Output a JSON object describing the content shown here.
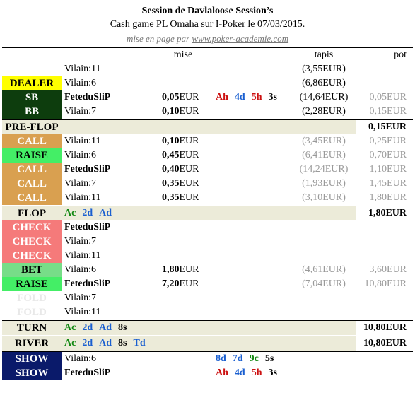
{
  "header": {
    "title": "Session de Davlaloose Session’s",
    "subtitle": "Cash game PL Omaha sur I-Poker le 07/03/2015.",
    "credit_prefix": "mise en page par ",
    "credit_url": "www.poker-academie.com"
  },
  "columns": {
    "mise": "mise",
    "tapis": "tapis",
    "pot": "pot"
  },
  "colors": {
    "dealer": "#ffff00",
    "blinds": "#0d3d0d",
    "call": "#d9a050",
    "raise": "#44ee66",
    "check": "#f57a7a",
    "bet": "#77dd88",
    "fold": "#e8e8e8",
    "show": "#0a1a6a",
    "street_bg": "#ecebd9"
  },
  "preflop_setup": [
    {
      "badge": "",
      "player": "Vilain:11",
      "mise": "",
      "cards": [],
      "tapis": "(3,55EUR)",
      "pot": ""
    },
    {
      "badge": "DEALER",
      "player": "Vilain:6",
      "mise": "",
      "cards": [],
      "tapis": "(6,86EUR)",
      "pot": ""
    },
    {
      "badge": "SB",
      "player": "FeteduSliP",
      "mise": "0,05",
      "cards": [
        {
          "v": "Ah",
          "c": "red"
        },
        {
          "v": "4d",
          "c": "blue"
        },
        {
          "v": "5h",
          "c": "red"
        },
        {
          "v": "3s",
          "c": "black"
        }
      ],
      "tapis": "(14,64EUR)",
      "pot": "0,05EUR"
    },
    {
      "badge": "BB",
      "player": "Vilain:7",
      "mise": "0,10",
      "cards": [],
      "tapis": "(2,28EUR)",
      "pot": "0,15EUR"
    }
  ],
  "preflop": {
    "label": "PRE-FLOP",
    "cards": [],
    "pot": "0,15EUR",
    "actions": [
      {
        "badge": "CALL",
        "player": "Vilain:11",
        "mise": "0,10",
        "tapis": "(3,45EUR)",
        "pot": "0,25EUR"
      },
      {
        "badge": "RAISE",
        "player": "Vilain:6",
        "mise": "0,45",
        "tapis": "(6,41EUR)",
        "pot": "0,70EUR"
      },
      {
        "badge": "CALL",
        "player": "FeteduSliP",
        "mise": "0,40",
        "tapis": "(14,24EUR)",
        "pot": "1,10EUR"
      },
      {
        "badge": "CALL",
        "player": "Vilain:7",
        "mise": "0,35",
        "tapis": "(1,93EUR)",
        "pot": "1,45EUR"
      },
      {
        "badge": "CALL",
        "player": "Vilain:11",
        "mise": "0,35",
        "tapis": "(3,10EUR)",
        "pot": "1,80EUR"
      }
    ]
  },
  "flop": {
    "label": "FLOP",
    "pot": "1,80EUR",
    "cards": [
      {
        "v": "Ac",
        "c": "green"
      },
      {
        "v": "2d",
        "c": "blue"
      },
      {
        "v": "Ad",
        "c": "blue"
      }
    ],
    "actions": [
      {
        "badge": "CHECK",
        "player": "FeteduSliP",
        "mise": "",
        "tapis": "",
        "pot": ""
      },
      {
        "badge": "CHECK",
        "player": "Vilain:7",
        "mise": "",
        "tapis": "",
        "pot": ""
      },
      {
        "badge": "CHECK",
        "player": "Vilain:11",
        "mise": "",
        "tapis": "",
        "pot": ""
      },
      {
        "badge": "BET",
        "player": "Vilain:6",
        "mise": "1,80",
        "tapis": "(4,61EUR)",
        "pot": "3,60EUR"
      },
      {
        "badge": "RAISE",
        "player": "FeteduSliP",
        "mise": "7,20",
        "tapis": "(7,04EUR)",
        "pot": "10,80EUR"
      },
      {
        "badge": "FOLD",
        "player": "Vilain:7",
        "mise": "",
        "tapis": "",
        "pot": ""
      },
      {
        "badge": "FOLD",
        "player": "Vilain:11",
        "mise": "",
        "tapis": "",
        "pot": ""
      }
    ]
  },
  "turn": {
    "label": "TURN",
    "pot": "10,80EUR",
    "cards": [
      {
        "v": "Ac",
        "c": "green"
      },
      {
        "v": "2d",
        "c": "blue"
      },
      {
        "v": "Ad",
        "c": "blue"
      },
      {
        "v": "8s",
        "c": "black"
      }
    ]
  },
  "river": {
    "label": "RIVER",
    "pot": "10,80EUR",
    "cards": [
      {
        "v": "Ac",
        "c": "green"
      },
      {
        "v": "2d",
        "c": "blue"
      },
      {
        "v": "Ad",
        "c": "blue"
      },
      {
        "v": "8s",
        "c": "black"
      },
      {
        "v": "Td",
        "c": "blue"
      }
    ]
  },
  "showdown": [
    {
      "badge": "SHOW",
      "player": "Vilain:6",
      "cards": [
        {
          "v": "8d",
          "c": "blue"
        },
        {
          "v": "7d",
          "c": "blue"
        },
        {
          "v": "9c",
          "c": "green"
        },
        {
          "v": "5s",
          "c": "black"
        }
      ]
    },
    {
      "badge": "SHOW",
      "player": "FeteduSliP",
      "cards": [
        {
          "v": "Ah",
          "c": "red"
        },
        {
          "v": "4d",
          "c": "blue"
        },
        {
          "v": "5h",
          "c": "red"
        },
        {
          "v": "3s",
          "c": "black"
        }
      ]
    }
  ],
  "unit": "EUR"
}
